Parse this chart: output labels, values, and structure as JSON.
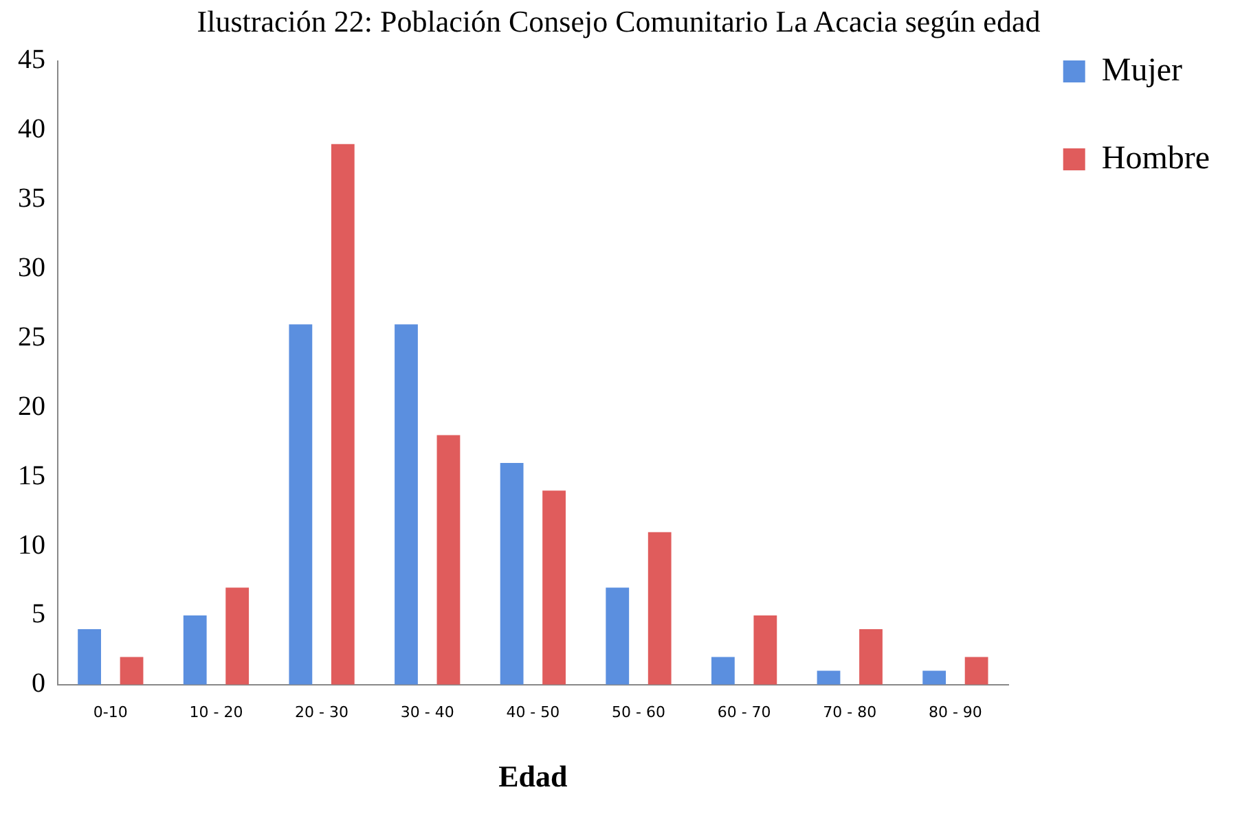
{
  "chart_data": {
    "type": "bar",
    "title": "Ilustración 22: Población Consejo Comunitario La Acacia según edad",
    "xlabel": "Edad",
    "categories": [
      "0-10",
      "10 - 20",
      "20 - 30",
      "30 - 40",
      "40 - 50",
      "50 - 60",
      "60 - 70",
      "70 - 80",
      "80 - 90"
    ],
    "series": [
      {
        "name": "Mujer",
        "color": "#5b8fdf",
        "values": [
          4,
          5,
          26,
          26,
          16,
          7,
          2,
          1,
          1
        ]
      },
      {
        "name": "Hombre",
        "color": "#e05c5c",
        "values": [
          2,
          7,
          39,
          18,
          14,
          11,
          5,
          4,
          2
        ]
      }
    ],
    "ylim": [
      0,
      45
    ],
    "yticks": [
      0,
      5,
      10,
      15,
      20,
      25,
      30,
      35,
      40,
      45
    ],
    "grid": false,
    "legend": "right"
  }
}
